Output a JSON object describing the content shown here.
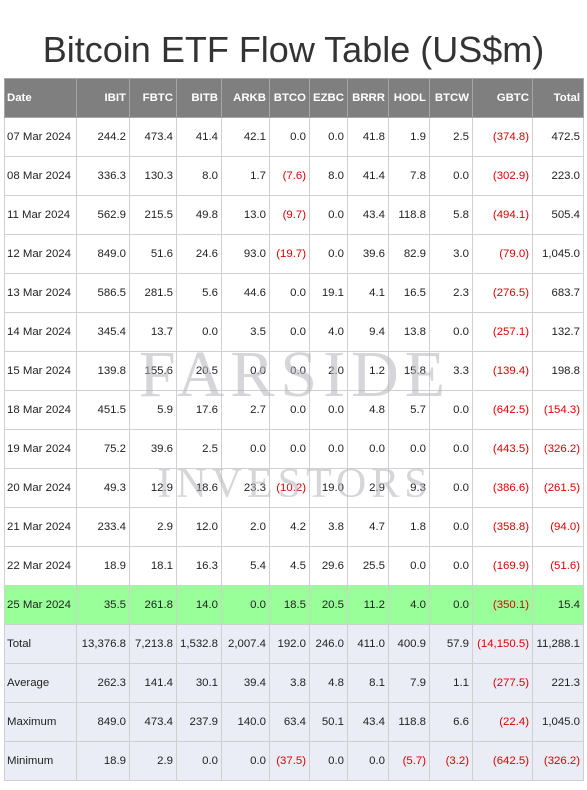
{
  "title": "Bitcoin ETF Flow Table (US$m)",
  "watermark": {
    "line1": "FARSIDE",
    "line2": "INVESTORS"
  },
  "colors": {
    "header_bg": "#7f7f7f",
    "highlight_row": "#99ff99",
    "summary_bg": "#eaedf6",
    "negative": "#e00000"
  },
  "headers": [
    "Date",
    "IBIT",
    "FBTC",
    "BITB",
    "ARKB",
    "BTCO",
    "EZBC",
    "BRRR",
    "HODL",
    "BTCW",
    "GBTC",
    "Total"
  ],
  "rows": [
    [
      "07 Mar 2024",
      "244.2",
      "473.4",
      "41.4",
      "42.1",
      "0.0",
      "0.0",
      "41.8",
      "1.9",
      "2.5",
      "(374.8)",
      "472.5"
    ],
    [
      "08 Mar 2024",
      "336.3",
      "130.3",
      "8.0",
      "1.7",
      "(7.6)",
      "8.0",
      "41.4",
      "7.8",
      "0.0",
      "(302.9)",
      "223.0"
    ],
    [
      "11 Mar 2024",
      "562.9",
      "215.5",
      "49.8",
      "13.0",
      "(9.7)",
      "0.0",
      "43.4",
      "118.8",
      "5.8",
      "(494.1)",
      "505.4"
    ],
    [
      "12 Mar 2024",
      "849.0",
      "51.6",
      "24.6",
      "93.0",
      "(19.7)",
      "0.0",
      "39.6",
      "82.9",
      "3.0",
      "(79.0)",
      "1,045.0"
    ],
    [
      "13 Mar 2024",
      "586.5",
      "281.5",
      "5.6",
      "44.6",
      "0.0",
      "19.1",
      "4.1",
      "16.5",
      "2.3",
      "(276.5)",
      "683.7"
    ],
    [
      "14 Mar 2024",
      "345.4",
      "13.7",
      "0.0",
      "3.5",
      "0.0",
      "4.0",
      "9.4",
      "13.8",
      "0.0",
      "(257.1)",
      "132.7"
    ],
    [
      "15 Mar 2024",
      "139.8",
      "155.6",
      "20.5",
      "0.0",
      "0.0",
      "2.0",
      "1.2",
      "15.8",
      "3.3",
      "(139.4)",
      "198.8"
    ],
    [
      "18 Mar 2024",
      "451.5",
      "5.9",
      "17.6",
      "2.7",
      "0.0",
      "0.0",
      "4.8",
      "5.7",
      "0.0",
      "(642.5)",
      "(154.3)"
    ],
    [
      "19 Mar 2024",
      "75.2",
      "39.6",
      "2.5",
      "0.0",
      "0.0",
      "0.0",
      "0.0",
      "0.0",
      "0.0",
      "(443.5)",
      "(326.2)"
    ],
    [
      "20 Mar 2024",
      "49.3",
      "12.9",
      "18.6",
      "23.3",
      "(10.2)",
      "19.0",
      "2.9",
      "9.3",
      "0.0",
      "(386.6)",
      "(261.5)"
    ],
    [
      "21 Mar 2024",
      "233.4",
      "2.9",
      "12.0",
      "2.0",
      "4.2",
      "3.8",
      "4.7",
      "1.8",
      "0.0",
      "(358.8)",
      "(94.0)"
    ],
    [
      "22 Mar 2024",
      "18.9",
      "18.1",
      "16.3",
      "5.4",
      "4.5",
      "29.6",
      "25.5",
      "0.0",
      "0.0",
      "(169.9)",
      "(51.6)"
    ],
    [
      "25 Mar 2024",
      "35.5",
      "261.8",
      "14.0",
      "0.0",
      "18.5",
      "20.5",
      "11.2",
      "4.0",
      "0.0",
      "(350.1)",
      "15.4"
    ]
  ],
  "highlight_row_index": 12,
  "summary": [
    [
      "Total",
      "13,376.8",
      "7,213.8",
      "1,532.8",
      "2,007.4",
      "192.0",
      "246.0",
      "411.0",
      "400.9",
      "57.9",
      "(14,150.5)",
      "11,288.1"
    ],
    [
      "Average",
      "262.3",
      "141.4",
      "30.1",
      "39.4",
      "3.8",
      "4.8",
      "8.1",
      "7.9",
      "1.1",
      "(277.5)",
      "221.3"
    ],
    [
      "Maximum",
      "849.0",
      "473.4",
      "237.9",
      "140.0",
      "63.4",
      "50.1",
      "43.4",
      "118.8",
      "6.6",
      "(22.4)",
      "1,045.0"
    ],
    [
      "Minimum",
      "18.9",
      "2.9",
      "0.0",
      "0.0",
      "(37.5)",
      "0.0",
      "0.0",
      "(5.7)",
      "(3.2)",
      "(642.5)",
      "(326.2)"
    ]
  ]
}
